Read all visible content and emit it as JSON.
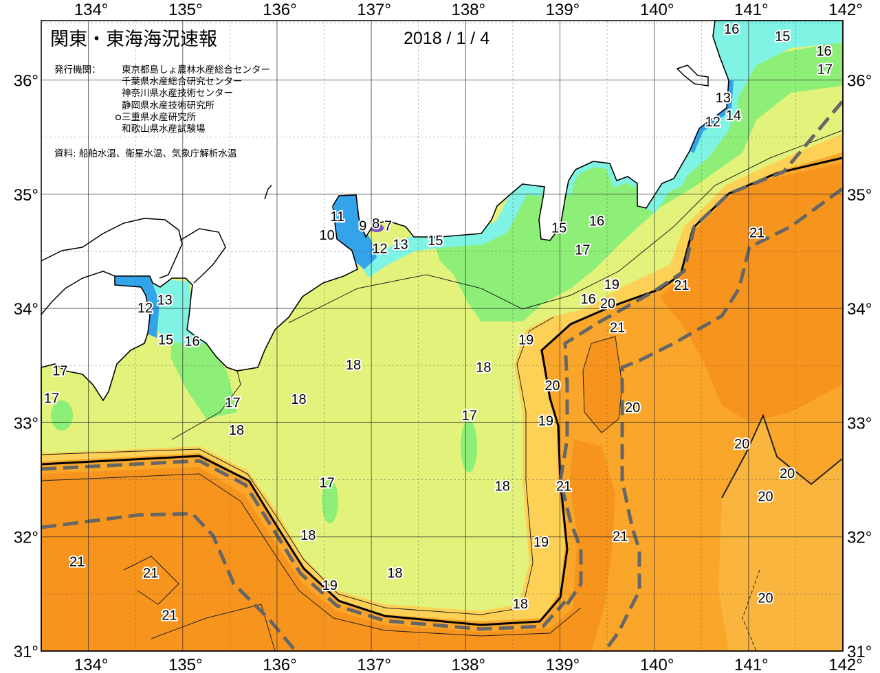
{
  "header": {
    "title": "関東・東海海況速報",
    "date": "2018 / 1 / 4",
    "issuers_label": "発行機関：",
    "issuers": [
      "東京都島しょ農林水産総合センター",
      "千葉県水産総合研究センター",
      "神奈川県水産技術センター",
      "静岡県水産技術研究所",
      "三重県水産研究所",
      "和歌山県水産試験場"
    ],
    "current_issuer_index": 4,
    "source": "資料: 船舶水温、衛星水温、気象庁解析水温"
  },
  "map": {
    "lon_range": [
      133.5,
      142
    ],
    "lat_range": [
      31,
      36.52
    ],
    "lon_ticks": [
      {
        "value": 134,
        "label": "134°"
      },
      {
        "value": 135,
        "label": "135°"
      },
      {
        "value": 136,
        "label": "136°"
      },
      {
        "value": 137,
        "label": "137°"
      },
      {
        "value": 138,
        "label": "138°"
      },
      {
        "value": 139,
        "label": "139°"
      },
      {
        "value": 140,
        "label": "140°"
      },
      {
        "value": 141,
        "label": "141°"
      },
      {
        "value": 142,
        "label": "142°"
      }
    ],
    "lat_ticks": [
      {
        "value": 31,
        "label": "31°"
      },
      {
        "value": 32,
        "label": "32°"
      },
      {
        "value": 33,
        "label": "33°"
      },
      {
        "value": 34,
        "label": "34°"
      },
      {
        "value": 35,
        "label": "35°"
      },
      {
        "value": 36,
        "label": "36°"
      }
    ],
    "colors": {
      "t21_plus": "#f7941d",
      "t20": "#f9a62a",
      "t19": "#fcd155",
      "t18": "#e2f27a",
      "t16_17": "#8eef78",
      "t13_15": "#7ff3e4",
      "t10_12": "#33a3ea",
      "t7_9": "#7b50c8",
      "kuroshio_axis": "#000000",
      "kuroshio_edge_dashed": "#666666",
      "land": "#ffffff"
    },
    "contour_labels": [
      {
        "value": "16",
        "lon": 140.82,
        "lat": 36.49
      },
      {
        "value": "15",
        "lon": 141.36,
        "lat": 36.38
      },
      {
        "value": "16",
        "lon": 141.8,
        "lat": 36.25
      },
      {
        "value": "17",
        "lon": 141.81,
        "lat": 36.09
      },
      {
        "value": "13",
        "lon": 140.73,
        "lat": 35.84
      },
      {
        "value": "14",
        "lon": 140.84,
        "lat": 35.76
      },
      {
        "value": "12",
        "lon": 140.65,
        "lat": 35.63
      },
      {
        "value": "11",
        "lon": 136.64,
        "lat": 34.8
      },
      {
        "value": "10",
        "lon": 136.53,
        "lat": 34.71
      },
      {
        "value": "9",
        "lon": 136.91,
        "lat": 34.72
      },
      {
        "value": "8",
        "lon": 136.99,
        "lat": 34.74
      },
      {
        "value": "7",
        "lon": 137.12,
        "lat": 34.72
      },
      {
        "value": "12",
        "lon": 137.09,
        "lat": 34.52
      },
      {
        "value": "13",
        "lon": 137.28,
        "lat": 34.58
      },
      {
        "value": "15",
        "lon": 137.68,
        "lat": 34.59
      },
      {
        "value": "15",
        "lon": 138.99,
        "lat": 34.7
      },
      {
        "value": "16",
        "lon": 139.39,
        "lat": 34.76
      },
      {
        "value": "17",
        "lon": 139.24,
        "lat": 34.51
      },
      {
        "value": "21",
        "lon": 141.09,
        "lat": 34.66
      },
      {
        "value": "21",
        "lon": 140.29,
        "lat": 34.2
      },
      {
        "value": "16",
        "lon": 139.3,
        "lat": 34.08
      },
      {
        "value": "20",
        "lon": 139.39,
        "lat": 34.04
      },
      {
        "value": "19",
        "lon": 139.55,
        "lat": 34.11
      },
      {
        "value": "13",
        "lon": 134.81,
        "lat": 34.07
      },
      {
        "value": "12",
        "lon": 134.63,
        "lat": 34.0
      },
      {
        "value": "15",
        "lon": 134.82,
        "lat": 33.72
      },
      {
        "value": "16",
        "lon": 135.1,
        "lat": 33.71
      },
      {
        "value": "17",
        "lon": 133.7,
        "lat": 33.45
      },
      {
        "value": "17",
        "lon": 133.58,
        "lat": 33.21
      },
      {
        "value": "18",
        "lon": 136.81,
        "lat": 33.5
      },
      {
        "value": "18",
        "lon": 138.19,
        "lat": 33.48
      },
      {
        "value": "19",
        "lon": 138.64,
        "lat": 33.72
      },
      {
        "value": "21",
        "lon": 139.61,
        "lat": 33.83
      },
      {
        "value": "20",
        "lon": 138.92,
        "lat": 33.32
      },
      {
        "value": "18",
        "lon": 136.23,
        "lat": 33.2
      },
      {
        "value": "17",
        "lon": 135.53,
        "lat": 33.17
      },
      {
        "value": "18",
        "lon": 135.57,
        "lat": 32.93
      },
      {
        "value": "17",
        "lon": 138.04,
        "lat": 33.06
      },
      {
        "value": "19",
        "lon": 138.85,
        "lat": 33.01
      },
      {
        "value": "20",
        "lon": 139.77,
        "lat": 33.13
      },
      {
        "value": "20",
        "lon": 140.93,
        "lat": 32.81
      },
      {
        "value": "20",
        "lon": 141.41,
        "lat": 32.55
      },
      {
        "value": "20",
        "lon": 141.18,
        "lat": 32.35
      },
      {
        "value": "17",
        "lon": 136.53,
        "lat": 32.47
      },
      {
        "value": "18",
        "lon": 138.39,
        "lat": 32.44
      },
      {
        "value": "21",
        "lon": 139.04,
        "lat": 32.44
      },
      {
        "value": "18",
        "lon": 136.33,
        "lat": 32.01
      },
      {
        "value": "19",
        "lon": 138.8,
        "lat": 31.95
      },
      {
        "value": "21",
        "lon": 139.64,
        "lat": 32.0
      },
      {
        "value": "21",
        "lon": 133.88,
        "lat": 31.78
      },
      {
        "value": "21",
        "lon": 134.66,
        "lat": 31.68
      },
      {
        "value": "18",
        "lon": 137.25,
        "lat": 31.68
      },
      {
        "value": "19",
        "lon": 136.56,
        "lat": 31.57
      },
      {
        "value": "21",
        "lon": 134.86,
        "lat": 31.31
      },
      {
        "value": "18",
        "lon": 138.58,
        "lat": 31.41
      },
      {
        "value": "20",
        "lon": 141.18,
        "lat": 31.46
      }
    ]
  }
}
